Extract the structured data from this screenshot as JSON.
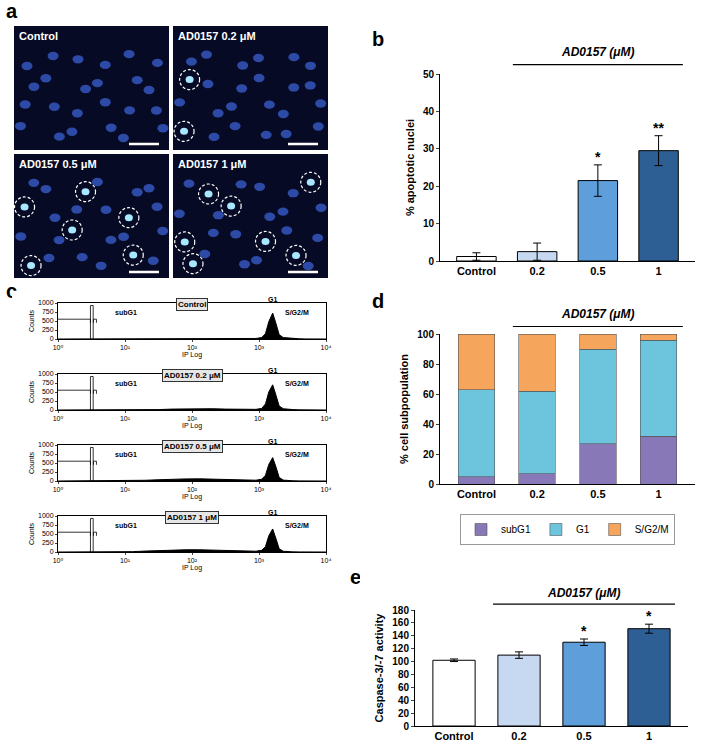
{
  "chart_data": [
    {
      "panel": "a",
      "type": "image_grid",
      "images": [
        {
          "label": "Control",
          "marked_nuclei": 0
        },
        {
          "label": "AD0157 0.2 μM",
          "marked_nuclei": 2
        },
        {
          "label": "AD0157 0.5 μM",
          "marked_nuclei": 6
        },
        {
          "label": "AD0157 1 μM",
          "marked_nuclei": 7
        }
      ]
    },
    {
      "panel": "b",
      "type": "bar",
      "group_label": "AD0157 (μM)",
      "y_label": "% apoptotic nuclei",
      "categories": [
        "Control",
        "0.2",
        "0.5",
        "1"
      ],
      "values": [
        1.2,
        2.5,
        21.5,
        29.5
      ],
      "errors": [
        1.0,
        2.3,
        4.2,
        4.0
      ],
      "significance": [
        null,
        null,
        "*",
        "**"
      ],
      "colors": [
        "#ffffff",
        "#c6d9f0",
        "#5e9fdb",
        "#2d5f94"
      ],
      "ylim": [
        0,
        50
      ],
      "yticks": [
        0,
        10,
        20,
        30,
        40,
        50
      ],
      "grid": false
    },
    {
      "panel": "c",
      "type": "histogram_stack",
      "x_label": "IP Log",
      "y_label": "Counts",
      "log": "x",
      "color": "#000000",
      "x": [
        1,
        2,
        3,
        5,
        8,
        13,
        20,
        32,
        50,
        80,
        130,
        200,
        320,
        500,
        700,
        900,
        1100,
        1250,
        1400,
        1600,
        1800,
        2000,
        2300,
        2700,
        3200,
        4000,
        5000,
        7000,
        10000
      ],
      "panels": [
        {
          "title": "Control",
          "values": [
            0,
            0,
            0,
            0,
            0,
            0,
            0,
            1,
            2,
            3,
            4,
            5,
            6,
            8,
            10,
            15,
            40,
            150,
            480,
            720,
            420,
            120,
            40,
            25,
            15,
            6,
            2,
            0,
            0
          ]
        },
        {
          "title": "AD0157 0.2 μM",
          "values": [
            0,
            0,
            0,
            0,
            0,
            2,
            5,
            12,
            25,
            35,
            40,
            35,
            25,
            18,
            15,
            18,
            45,
            170,
            500,
            700,
            400,
            110,
            35,
            20,
            12,
            5,
            2,
            0,
            0
          ]
        },
        {
          "title": "AD0157 0.5 μM",
          "values": [
            0,
            0,
            0,
            0,
            2,
            8,
            20,
            35,
            50,
            58,
            60,
            55,
            40,
            28,
            20,
            22,
            50,
            160,
            460,
            650,
            380,
            100,
            25,
            12,
            6,
            3,
            1,
            0,
            0
          ]
        },
        {
          "title": "AD0157 1 μM",
          "values": [
            0,
            0,
            0,
            0,
            3,
            10,
            25,
            42,
            55,
            62,
            62,
            55,
            40,
            28,
            20,
            22,
            48,
            150,
            450,
            640,
            360,
            90,
            20,
            8,
            4,
            2,
            1,
            0,
            0
          ]
        }
      ],
      "gates": [
        {
          "label": "subG1",
          "range": [
            3,
            1120
          ]
        },
        {
          "label": "G1",
          "range": [
            1120,
            2240
          ]
        },
        {
          "label": "S/G2/M",
          "range": [
            2400,
            5600
          ]
        }
      ],
      "xlim": [
        1,
        10000
      ],
      "xticks": [
        {
          "value": 1,
          "label": "10⁰"
        },
        {
          "value": 10,
          "label": "10¹"
        },
        {
          "value": 100,
          "label": "10²"
        },
        {
          "value": 1000,
          "label": "10³"
        },
        {
          "value": 10000,
          "label": "10⁴"
        }
      ],
      "ylim": [
        0,
        1000
      ],
      "yticks": [
        0,
        250,
        500,
        750,
        1000
      ],
      "grid": false
    },
    {
      "panel": "d",
      "type": "bar",
      "stacked": true,
      "group_label": "AD0157 (μM)",
      "y_label": "% cell subpopulation",
      "categories": [
        "Control",
        "0.2",
        "0.5",
        "1"
      ],
      "series": [
        {
          "name": "subG1",
          "color": "#8878b8",
          "values": [
            5,
            7,
            27,
            32
          ]
        },
        {
          "name": "G1",
          "color": "#6cc5dd",
          "values": [
            58,
            55,
            63,
            64
          ]
        },
        {
          "name": "S/G2/M",
          "color": "#f5a55c",
          "values": [
            37,
            38,
            10,
            4
          ]
        }
      ],
      "ylim": [
        0,
        100
      ],
      "yticks": [
        0,
        20,
        40,
        60,
        80,
        100
      ],
      "legend": "bottom",
      "grid": false
    },
    {
      "panel": "e",
      "type": "bar",
      "group_label": "AD0157 (μM)",
      "y_label": "Caspase-3/-7 activity",
      "categories": [
        "Control",
        "0.2",
        "0.5",
        "1"
      ],
      "values": [
        102,
        110,
        130,
        151
      ],
      "errors": [
        2,
        5,
        5,
        7
      ],
      "significance": [
        null,
        null,
        "*",
        "*"
      ],
      "colors": [
        "#ffffff",
        "#c6d9f0",
        "#5e9fdb",
        "#2d5f94"
      ],
      "ylim": [
        0,
        180
      ],
      "yticks": [
        0,
        20,
        40,
        60,
        80,
        100,
        120,
        140,
        160,
        180
      ],
      "grid": false
    }
  ]
}
